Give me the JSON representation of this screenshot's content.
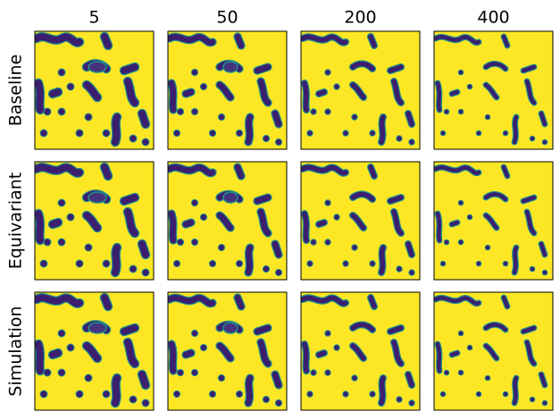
{
  "column_titles": [
    "5",
    "50",
    "200",
    "400"
  ],
  "row_labels": [
    "Baseline",
    "Equivariant",
    "Simulation"
  ]
}
